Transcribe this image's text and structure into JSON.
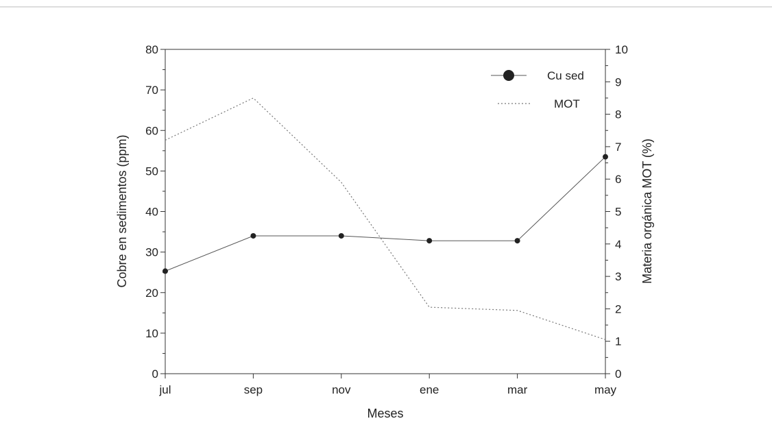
{
  "chart_data": {
    "type": "line",
    "title": "",
    "categories": [
      "jul",
      "sep",
      "nov",
      "ene",
      "mar",
      "may"
    ],
    "xlabel": "Meses",
    "ylabel": "Cobre en sedimentos (ppm)",
    "y2label": "Materia orgánica MOT  (%)",
    "ylim": [
      0,
      80
    ],
    "y2lim": [
      0,
      10
    ],
    "yticks": [
      0,
      10,
      20,
      30,
      40,
      50,
      60,
      70,
      80
    ],
    "y2ticks": [
      0,
      1,
      2,
      3,
      4,
      5,
      6,
      7,
      8,
      9,
      10
    ],
    "grid": false,
    "legend_position": "top-right",
    "series": [
      {
        "name": "Cu sed",
        "axis": "left",
        "style": "solid-markers",
        "values": [
          25.3,
          34.0,
          34.0,
          32.8,
          32.8,
          53.5
        ]
      },
      {
        "name": "MOT",
        "axis": "right",
        "style": "dotted",
        "values": [
          7.2,
          8.5,
          5.9,
          2.05,
          1.95,
          1.05
        ]
      }
    ]
  },
  "colors": {
    "axis": "#333333",
    "cu_line": "#555555",
    "cu_marker": "#222222",
    "mot_line": "#777777"
  }
}
